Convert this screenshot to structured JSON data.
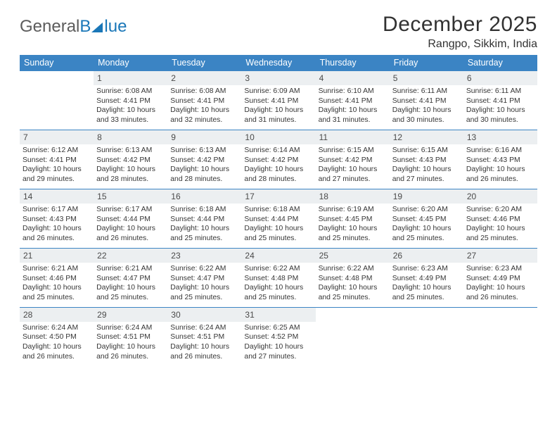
{
  "colors": {
    "header_bg": "#3b84c4",
    "header_text": "#ffffff",
    "daynum_bg": "#eceff1",
    "daynum_text": "#4a4a4a",
    "body_text": "#363636",
    "rule": "#3b84c4",
    "logo_gray": "#5c5c5c",
    "logo_blue": "#1a77b8",
    "title_color": "#323232",
    "page_bg": "#ffffff"
  },
  "logo": {
    "part1": "General",
    "part2": "lue"
  },
  "title": "December 2025",
  "subtitle": "Rangpo, Sikkim, India",
  "dow": [
    "Sunday",
    "Monday",
    "Tuesday",
    "Wednesday",
    "Thursday",
    "Friday",
    "Saturday"
  ],
  "weeks": [
    [
      {
        "n": "",
        "lines": []
      },
      {
        "n": "1",
        "lines": [
          "Sunrise: 6:08 AM",
          "Sunset: 4:41 PM",
          "Daylight: 10 hours",
          "and 33 minutes."
        ]
      },
      {
        "n": "2",
        "lines": [
          "Sunrise: 6:08 AM",
          "Sunset: 4:41 PM",
          "Daylight: 10 hours",
          "and 32 minutes."
        ]
      },
      {
        "n": "3",
        "lines": [
          "Sunrise: 6:09 AM",
          "Sunset: 4:41 PM",
          "Daylight: 10 hours",
          "and 31 minutes."
        ]
      },
      {
        "n": "4",
        "lines": [
          "Sunrise: 6:10 AM",
          "Sunset: 4:41 PM",
          "Daylight: 10 hours",
          "and 31 minutes."
        ]
      },
      {
        "n": "5",
        "lines": [
          "Sunrise: 6:11 AM",
          "Sunset: 4:41 PM",
          "Daylight: 10 hours",
          "and 30 minutes."
        ]
      },
      {
        "n": "6",
        "lines": [
          "Sunrise: 6:11 AM",
          "Sunset: 4:41 PM",
          "Daylight: 10 hours",
          "and 30 minutes."
        ]
      }
    ],
    [
      {
        "n": "7",
        "lines": [
          "Sunrise: 6:12 AM",
          "Sunset: 4:41 PM",
          "Daylight: 10 hours",
          "and 29 minutes."
        ]
      },
      {
        "n": "8",
        "lines": [
          "Sunrise: 6:13 AM",
          "Sunset: 4:42 PM",
          "Daylight: 10 hours",
          "and 28 minutes."
        ]
      },
      {
        "n": "9",
        "lines": [
          "Sunrise: 6:13 AM",
          "Sunset: 4:42 PM",
          "Daylight: 10 hours",
          "and 28 minutes."
        ]
      },
      {
        "n": "10",
        "lines": [
          "Sunrise: 6:14 AM",
          "Sunset: 4:42 PM",
          "Daylight: 10 hours",
          "and 28 minutes."
        ]
      },
      {
        "n": "11",
        "lines": [
          "Sunrise: 6:15 AM",
          "Sunset: 4:42 PM",
          "Daylight: 10 hours",
          "and 27 minutes."
        ]
      },
      {
        "n": "12",
        "lines": [
          "Sunrise: 6:15 AM",
          "Sunset: 4:43 PM",
          "Daylight: 10 hours",
          "and 27 minutes."
        ]
      },
      {
        "n": "13",
        "lines": [
          "Sunrise: 6:16 AM",
          "Sunset: 4:43 PM",
          "Daylight: 10 hours",
          "and 26 minutes."
        ]
      }
    ],
    [
      {
        "n": "14",
        "lines": [
          "Sunrise: 6:17 AM",
          "Sunset: 4:43 PM",
          "Daylight: 10 hours",
          "and 26 minutes."
        ]
      },
      {
        "n": "15",
        "lines": [
          "Sunrise: 6:17 AM",
          "Sunset: 4:44 PM",
          "Daylight: 10 hours",
          "and 26 minutes."
        ]
      },
      {
        "n": "16",
        "lines": [
          "Sunrise: 6:18 AM",
          "Sunset: 4:44 PM",
          "Daylight: 10 hours",
          "and 25 minutes."
        ]
      },
      {
        "n": "17",
        "lines": [
          "Sunrise: 6:18 AM",
          "Sunset: 4:44 PM",
          "Daylight: 10 hours",
          "and 25 minutes."
        ]
      },
      {
        "n": "18",
        "lines": [
          "Sunrise: 6:19 AM",
          "Sunset: 4:45 PM",
          "Daylight: 10 hours",
          "and 25 minutes."
        ]
      },
      {
        "n": "19",
        "lines": [
          "Sunrise: 6:20 AM",
          "Sunset: 4:45 PM",
          "Daylight: 10 hours",
          "and 25 minutes."
        ]
      },
      {
        "n": "20",
        "lines": [
          "Sunrise: 6:20 AM",
          "Sunset: 4:46 PM",
          "Daylight: 10 hours",
          "and 25 minutes."
        ]
      }
    ],
    [
      {
        "n": "21",
        "lines": [
          "Sunrise: 6:21 AM",
          "Sunset: 4:46 PM",
          "Daylight: 10 hours",
          "and 25 minutes."
        ]
      },
      {
        "n": "22",
        "lines": [
          "Sunrise: 6:21 AM",
          "Sunset: 4:47 PM",
          "Daylight: 10 hours",
          "and 25 minutes."
        ]
      },
      {
        "n": "23",
        "lines": [
          "Sunrise: 6:22 AM",
          "Sunset: 4:47 PM",
          "Daylight: 10 hours",
          "and 25 minutes."
        ]
      },
      {
        "n": "24",
        "lines": [
          "Sunrise: 6:22 AM",
          "Sunset: 4:48 PM",
          "Daylight: 10 hours",
          "and 25 minutes."
        ]
      },
      {
        "n": "25",
        "lines": [
          "Sunrise: 6:22 AM",
          "Sunset: 4:48 PM",
          "Daylight: 10 hours",
          "and 25 minutes."
        ]
      },
      {
        "n": "26",
        "lines": [
          "Sunrise: 6:23 AM",
          "Sunset: 4:49 PM",
          "Daylight: 10 hours",
          "and 25 minutes."
        ]
      },
      {
        "n": "27",
        "lines": [
          "Sunrise: 6:23 AM",
          "Sunset: 4:49 PM",
          "Daylight: 10 hours",
          "and 26 minutes."
        ]
      }
    ],
    [
      {
        "n": "28",
        "lines": [
          "Sunrise: 6:24 AM",
          "Sunset: 4:50 PM",
          "Daylight: 10 hours",
          "and 26 minutes."
        ]
      },
      {
        "n": "29",
        "lines": [
          "Sunrise: 6:24 AM",
          "Sunset: 4:51 PM",
          "Daylight: 10 hours",
          "and 26 minutes."
        ]
      },
      {
        "n": "30",
        "lines": [
          "Sunrise: 6:24 AM",
          "Sunset: 4:51 PM",
          "Daylight: 10 hours",
          "and 26 minutes."
        ]
      },
      {
        "n": "31",
        "lines": [
          "Sunrise: 6:25 AM",
          "Sunset: 4:52 PM",
          "Daylight: 10 hours",
          "and 27 minutes."
        ]
      },
      {
        "n": "",
        "lines": []
      },
      {
        "n": "",
        "lines": []
      },
      {
        "n": "",
        "lines": []
      }
    ]
  ]
}
